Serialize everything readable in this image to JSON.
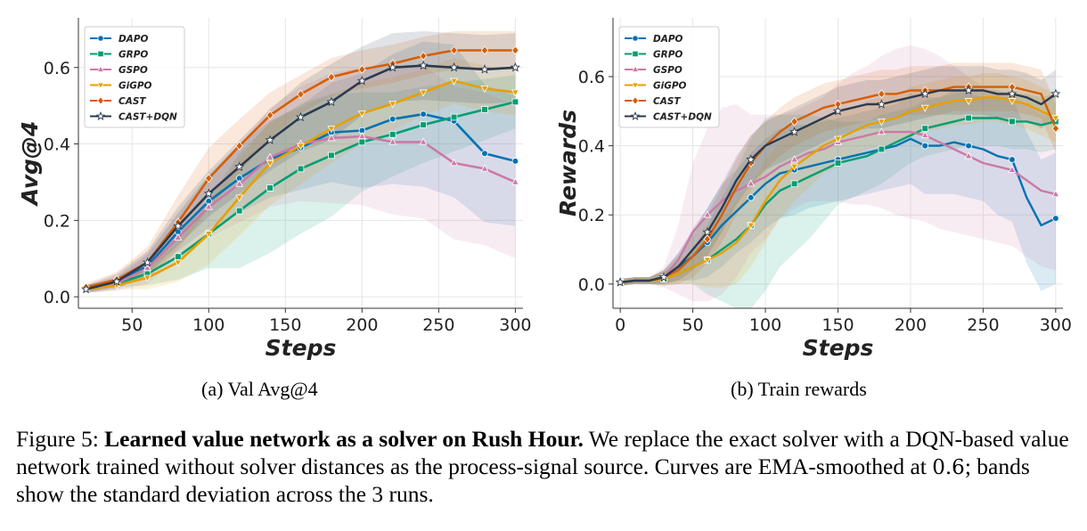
{
  "chart_data": [
    {
      "type": "line",
      "subcaption": "(a) Val Avg@4",
      "xlabel": "Steps",
      "ylabel": "Avg@4",
      "xlim": [
        15,
        305
      ],
      "ylim": [
        -0.03,
        0.73
      ],
      "xticks": [
        50,
        100,
        150,
        200,
        250,
        300
      ],
      "yticks": [
        0.0,
        0.2,
        0.4,
        0.6
      ],
      "grid": true,
      "legend": "top-left",
      "x": [
        20,
        40,
        60,
        80,
        100,
        120,
        140,
        160,
        180,
        200,
        220,
        240,
        260,
        280,
        300
      ],
      "series": [
        {
          "name": "DAPO",
          "color": "#0072b2",
          "marker": "circle",
          "values": [
            0.02,
            0.04,
            0.08,
            0.17,
            0.25,
            0.31,
            0.36,
            0.39,
            0.43,
            0.435,
            0.465,
            0.478,
            0.46,
            0.375,
            0.355
          ],
          "band": [
            0.01,
            0.01,
            0.03,
            0.05,
            0.07,
            0.09,
            0.1,
            0.11,
            0.13,
            0.15,
            0.17,
            0.19,
            0.2,
            0.18,
            0.17
          ]
        },
        {
          "name": "GRPO",
          "color": "#009e73",
          "marker": "square",
          "values": [
            0.02,
            0.035,
            0.06,
            0.105,
            0.165,
            0.225,
            0.285,
            0.335,
            0.37,
            0.405,
            0.425,
            0.45,
            0.47,
            0.49,
            0.51
          ],
          "band": [
            0.01,
            0.01,
            0.03,
            0.06,
            0.09,
            0.15,
            0.17,
            0.17,
            0.16,
            0.13,
            0.11,
            0.1,
            0.09,
            0.08,
            0.07
          ]
        },
        {
          "name": "GSPO",
          "color": "#cc79a7",
          "marker": "triangle-up",
          "values": [
            0.02,
            0.035,
            0.075,
            0.155,
            0.235,
            0.295,
            0.365,
            0.4,
            0.415,
            0.42,
            0.405,
            0.405,
            0.35,
            0.335,
            0.3
          ],
          "band": [
            0.01,
            0.02,
            0.04,
            0.06,
            0.08,
            0.1,
            0.13,
            0.15,
            0.17,
            0.18,
            0.19,
            0.2,
            0.2,
            0.2,
            0.2
          ]
        },
        {
          "name": "GiGPO",
          "color": "#e69f00",
          "marker": "triangle-down",
          "values": [
            0.02,
            0.03,
            0.05,
            0.09,
            0.165,
            0.26,
            0.35,
            0.395,
            0.44,
            0.48,
            0.505,
            0.535,
            0.565,
            0.545,
            0.535
          ],
          "band": [
            0.01,
            0.01,
            0.03,
            0.05,
            0.08,
            0.1,
            0.11,
            0.1,
            0.09,
            0.08,
            0.07,
            0.06,
            0.06,
            0.06,
            0.06
          ]
        },
        {
          "name": "CAST",
          "color": "#d55e00",
          "marker": "diamond",
          "values": [
            0.025,
            0.045,
            0.09,
            0.195,
            0.31,
            0.395,
            0.475,
            0.53,
            0.575,
            0.595,
            0.61,
            0.63,
            0.645,
            0.645,
            0.645
          ],
          "band": [
            0.01,
            0.02,
            0.04,
            0.07,
            0.08,
            0.07,
            0.06,
            0.05,
            0.05,
            0.05,
            0.05,
            0.05,
            0.05,
            0.05,
            0.05
          ]
        },
        {
          "name": "CAST+DQN",
          "color": "#2b3a4e",
          "marker": "star",
          "values": [
            0.02,
            0.04,
            0.09,
            0.185,
            0.27,
            0.34,
            0.41,
            0.47,
            0.51,
            0.565,
            0.6,
            0.605,
            0.6,
            0.595,
            0.6
          ],
          "band": [
            0.01,
            0.02,
            0.03,
            0.05,
            0.06,
            0.07,
            0.08,
            0.09,
            0.1,
            0.09,
            0.09,
            0.09,
            0.09,
            0.09,
            0.09
          ]
        }
      ]
    },
    {
      "type": "line",
      "subcaption": "(b) Train rewards",
      "xlabel": "Steps",
      "ylabel": "Rewards",
      "xlim": [
        -5,
        305
      ],
      "ylim": [
        -0.07,
        0.77
      ],
      "xticks": [
        0,
        50,
        100,
        150,
        200,
        250,
        300
      ],
      "yticks": [
        0.0,
        0.2,
        0.4,
        0.6
      ],
      "grid": true,
      "legend": "top-left",
      "x": [
        0,
        10,
        20,
        30,
        40,
        50,
        60,
        70,
        80,
        90,
        100,
        110,
        120,
        130,
        140,
        150,
        160,
        170,
        180,
        190,
        200,
        210,
        220,
        230,
        240,
        250,
        260,
        270,
        280,
        290,
        300
      ],
      "series": [
        {
          "name": "DAPO",
          "color": "#0072b2",
          "marker": "circle",
          "values": [
            0.005,
            0.01,
            0.01,
            0.02,
            0.05,
            0.08,
            0.12,
            0.17,
            0.21,
            0.25,
            0.29,
            0.32,
            0.33,
            0.34,
            0.35,
            0.36,
            0.37,
            0.38,
            0.39,
            0.4,
            0.42,
            0.4,
            0.4,
            0.41,
            0.4,
            0.39,
            0.37,
            0.36,
            0.25,
            0.17,
            0.19
          ],
          "band": [
            0.01,
            0.01,
            0.01,
            0.02,
            0.04,
            0.07,
            0.1,
            0.12,
            0.12,
            0.13,
            0.13,
            0.13,
            0.13,
            0.12,
            0.12,
            0.12,
            0.12,
            0.12,
            0.12,
            0.12,
            0.13,
            0.14,
            0.14,
            0.15,
            0.15,
            0.15,
            0.17,
            0.18,
            0.19,
            0.19,
            0.19
          ]
        },
        {
          "name": "GRPO",
          "color": "#009e73",
          "marker": "square",
          "values": [
            0.005,
            0.01,
            0.01,
            0.015,
            0.03,
            0.05,
            0.07,
            0.1,
            0.13,
            0.17,
            0.23,
            0.27,
            0.29,
            0.31,
            0.33,
            0.35,
            0.36,
            0.37,
            0.39,
            0.41,
            0.43,
            0.45,
            0.46,
            0.47,
            0.48,
            0.48,
            0.48,
            0.47,
            0.47,
            0.46,
            0.47
          ],
          "band": [
            0.01,
            0.01,
            0.01,
            0.02,
            0.03,
            0.05,
            0.1,
            0.15,
            0.2,
            0.25,
            0.25,
            0.22,
            0.2,
            0.18,
            0.15,
            0.12,
            0.11,
            0.1,
            0.1,
            0.09,
            0.08,
            0.08,
            0.08,
            0.08,
            0.08,
            0.08,
            0.08,
            0.08,
            0.08,
            0.08,
            0.08
          ]
        },
        {
          "name": "GSPO",
          "color": "#cc79a7",
          "marker": "triangle-up",
          "values": [
            0.005,
            0.01,
            0.01,
            0.02,
            0.07,
            0.15,
            0.2,
            0.24,
            0.27,
            0.29,
            0.31,
            0.34,
            0.36,
            0.38,
            0.39,
            0.41,
            0.42,
            0.43,
            0.44,
            0.44,
            0.44,
            0.43,
            0.41,
            0.39,
            0.37,
            0.35,
            0.34,
            0.33,
            0.3,
            0.27,
            0.26
          ],
          "band": [
            0.01,
            0.01,
            0.01,
            0.03,
            0.1,
            0.2,
            0.25,
            0.27,
            0.25,
            0.2,
            0.18,
            0.15,
            0.14,
            0.14,
            0.15,
            0.17,
            0.19,
            0.2,
            0.22,
            0.24,
            0.25,
            0.25,
            0.25,
            0.24,
            0.23,
            0.22,
            0.22,
            0.22,
            0.22,
            0.22,
            0.22
          ]
        },
        {
          "name": "GiGPO",
          "color": "#e69f00",
          "marker": "triangle-down",
          "values": [
            0.005,
            0.01,
            0.01,
            0.015,
            0.03,
            0.05,
            0.07,
            0.09,
            0.12,
            0.17,
            0.24,
            0.3,
            0.34,
            0.37,
            0.4,
            0.42,
            0.44,
            0.46,
            0.47,
            0.48,
            0.5,
            0.51,
            0.52,
            0.53,
            0.53,
            0.54,
            0.54,
            0.53,
            0.52,
            0.5,
            0.48
          ],
          "band": [
            0.01,
            0.01,
            0.01,
            0.02,
            0.03,
            0.05,
            0.08,
            0.1,
            0.12,
            0.12,
            0.12,
            0.11,
            0.1,
            0.09,
            0.08,
            0.08,
            0.07,
            0.07,
            0.07,
            0.07,
            0.07,
            0.07,
            0.07,
            0.07,
            0.07,
            0.07,
            0.07,
            0.07,
            0.07,
            0.07,
            0.07
          ]
        },
        {
          "name": "CAST",
          "color": "#d55e00",
          "marker": "diamond",
          "values": [
            0.005,
            0.01,
            0.01,
            0.02,
            0.04,
            0.08,
            0.13,
            0.2,
            0.28,
            0.35,
            0.4,
            0.44,
            0.47,
            0.49,
            0.51,
            0.52,
            0.53,
            0.54,
            0.55,
            0.55,
            0.56,
            0.56,
            0.56,
            0.57,
            0.57,
            0.57,
            0.57,
            0.57,
            0.56,
            0.55,
            0.45
          ],
          "band": [
            0.01,
            0.01,
            0.01,
            0.02,
            0.04,
            0.06,
            0.07,
            0.08,
            0.08,
            0.08,
            0.07,
            0.07,
            0.07,
            0.07,
            0.07,
            0.07,
            0.07,
            0.07,
            0.07,
            0.07,
            0.07,
            0.07,
            0.07,
            0.07,
            0.07,
            0.07,
            0.07,
            0.07,
            0.07,
            0.07,
            0.07
          ]
        },
        {
          "name": "CAST+DQN",
          "color": "#2b3a4e",
          "marker": "star",
          "values": [
            0.005,
            0.01,
            0.01,
            0.02,
            0.05,
            0.1,
            0.15,
            0.22,
            0.3,
            0.36,
            0.4,
            0.42,
            0.44,
            0.46,
            0.48,
            0.5,
            0.51,
            0.52,
            0.52,
            0.53,
            0.54,
            0.55,
            0.56,
            0.56,
            0.56,
            0.56,
            0.55,
            0.55,
            0.54,
            0.52,
            0.55
          ],
          "band": [
            0.01,
            0.01,
            0.01,
            0.02,
            0.04,
            0.06,
            0.07,
            0.07,
            0.07,
            0.07,
            0.07,
            0.07,
            0.07,
            0.07,
            0.07,
            0.07,
            0.07,
            0.07,
            0.07,
            0.07,
            0.07,
            0.07,
            0.07,
            0.07,
            0.07,
            0.07,
            0.07,
            0.07,
            0.07,
            0.07,
            0.07
          ]
        }
      ]
    }
  ],
  "caption": {
    "prefix": "Figure 5: ",
    "bold": "Learned value network as a solver on Rush Hour.",
    "part1": " We replace the exact solver with a DQN-based value network trained without solver distances as the process-signal source. Curves are EMA-smoothed at ",
    "number": "0.6",
    "part2": "; bands show the standard deviation across the 3 runs."
  }
}
